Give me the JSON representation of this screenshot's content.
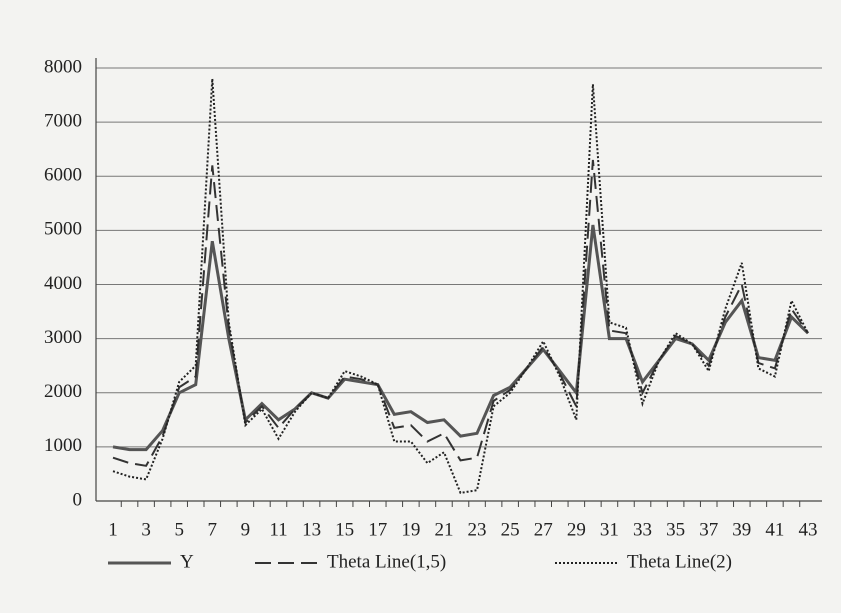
{
  "chart_data": {
    "type": "line",
    "categories": [
      "1",
      null,
      "3",
      null,
      "5",
      null,
      "7",
      null,
      "9",
      null,
      "11",
      null,
      "13",
      null,
      "15",
      null,
      "17",
      null,
      "19",
      null,
      "21",
      null,
      "23",
      null,
      "25",
      null,
      "27",
      null,
      "29",
      null,
      "31",
      null,
      "33",
      null,
      "35",
      null,
      "37",
      null,
      "39",
      null,
      "41",
      null,
      "43"
    ],
    "series": [
      {
        "name": "Y",
        "color": "#555555",
        "linestyle": "solid",
        "values": [
          1000,
          950,
          950,
          1300,
          2000,
          2150,
          4800,
          3000,
          1500,
          1800,
          1500,
          1700,
          2000,
          1900,
          2250,
          2200,
          2150,
          1600,
          1650,
          1450,
          1500,
          1200,
          1250,
          1950,
          2100,
          2450,
          2800,
          2400,
          2000,
          5100,
          3000,
          3000,
          2200,
          2600,
          3000,
          2900,
          2600,
          3300,
          3700,
          2650,
          2600,
          3400,
          3100
        ]
      },
      {
        "name": "Theta Line(1,5)",
        "color": "#333333",
        "linestyle": "dashed",
        "values": [
          800,
          700,
          650,
          1200,
          2100,
          2300,
          6200,
          3200,
          1450,
          1750,
          1350,
          1700,
          2000,
          1900,
          2300,
          2250,
          2150,
          1350,
          1400,
          1100,
          1250,
          750,
          800,
          1850,
          2050,
          2450,
          2850,
          2350,
          1750,
          6300,
          3150,
          3100,
          2000,
          2600,
          3050,
          2900,
          2500,
          3400,
          4000,
          2550,
          2450,
          3550,
          3100
        ]
      },
      {
        "name": "Theta Line(2)",
        "color": "#222222",
        "linestyle": "dotted",
        "values": [
          550,
          450,
          400,
          1150,
          2200,
          2500,
          7800,
          3300,
          1400,
          1700,
          1150,
          1650,
          2000,
          1900,
          2400,
          2300,
          2150,
          1100,
          1100,
          700,
          900,
          150,
          200,
          1750,
          2000,
          2450,
          2950,
          2300,
          1500,
          7700,
          3300,
          3200,
          1800,
          2600,
          3100,
          2900,
          2400,
          3550,
          4400,
          2450,
          2300,
          3700,
          3100
        ]
      }
    ],
    "ylim": [
      0,
      8000
    ],
    "yticks": [
      0,
      1000,
      2000,
      3000,
      4000,
      5000,
      6000,
      7000,
      8000
    ],
    "grid": true,
    "legend": "bottom"
  }
}
